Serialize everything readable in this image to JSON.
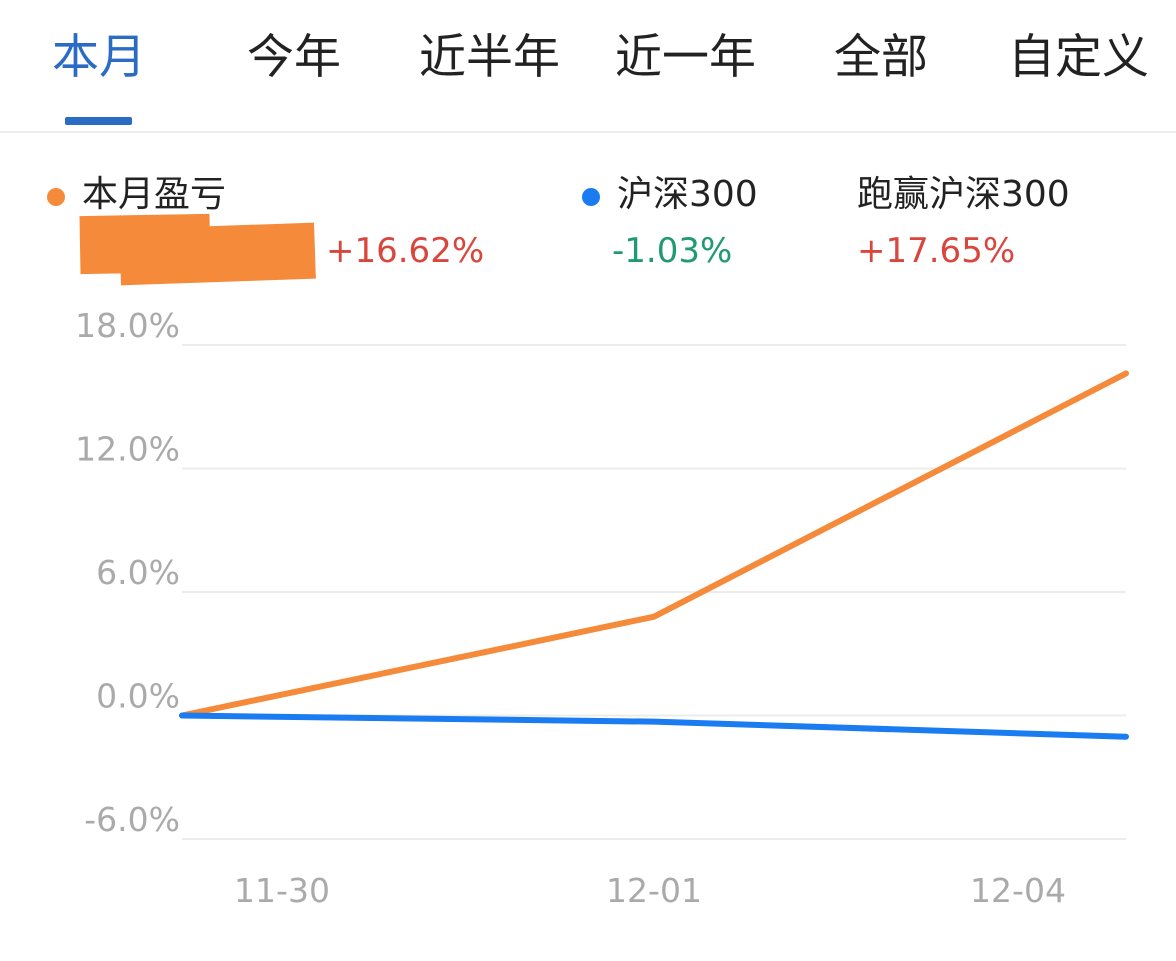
{
  "tabs": [
    {
      "label": "本月",
      "active": true
    },
    {
      "label": "今年",
      "active": false
    },
    {
      "label": "近半年",
      "active": false
    },
    {
      "label": "近一年",
      "active": false
    },
    {
      "label": "全部",
      "active": false
    },
    {
      "label": "自定义",
      "active": false
    }
  ],
  "legend": {
    "profit": {
      "label": "本月盈亏",
      "value": "+16.62%",
      "dot_color": "#f58a3a",
      "value_color": "#d9463e"
    },
    "index": {
      "label": "沪深300",
      "value": "-1.03%",
      "dot_color": "#1a7cf0",
      "value_color": "#1f9a72"
    },
    "beat": {
      "label": "跑赢沪深300",
      "value": "+17.65%",
      "value_color": "#d9463e"
    }
  },
  "chart_data": {
    "type": "line",
    "x": [
      "11-30",
      "12-01",
      "12-04"
    ],
    "series": [
      {
        "name": "本月盈亏",
        "color": "#f58a3a",
        "values": [
          0,
          4.8,
          16.62
        ]
      },
      {
        "name": "沪深300",
        "color": "#1a7cf0",
        "values": [
          0,
          -0.3,
          -1.03
        ]
      }
    ],
    "y_ticks": [
      "18.0%",
      "12.0%",
      "6.0%",
      "0.0%",
      "-6.0%"
    ],
    "y_tick_values": [
      18,
      12,
      6,
      0,
      -6
    ],
    "ylim": [
      -6,
      18
    ],
    "grid": true,
    "x_tick_labels": [
      "11-30",
      "12-01",
      "12-04"
    ]
  }
}
